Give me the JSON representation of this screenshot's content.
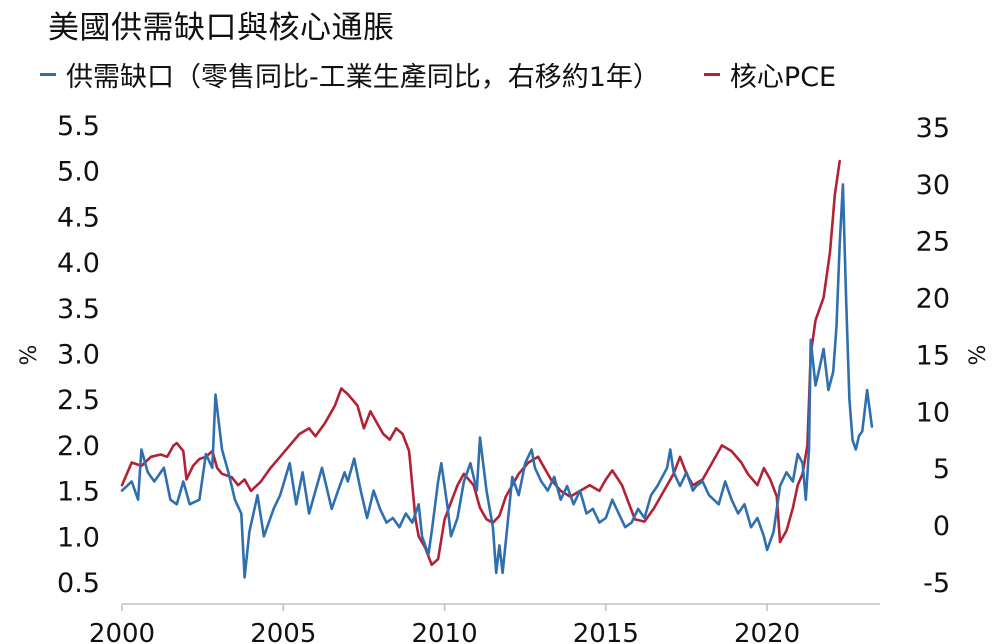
{
  "chart_data": {
    "type": "line",
    "title": "美國供需缺口與核心通脹",
    "y_left": {
      "label": "%",
      "ticks": [
        "5.5",
        "5.0",
        "4.5",
        "4.0",
        "3.5",
        "3.0",
        "2.5",
        "2.0",
        "1.5",
        "1.0",
        "0.5"
      ],
      "range": [
        0.3,
        5.5
      ]
    },
    "y_right": {
      "label": "%",
      "ticks": [
        "35",
        "30",
        "25",
        "20",
        "15",
        "10",
        "5",
        "0",
        "-5"
      ],
      "range": [
        -7,
        35
      ]
    },
    "x": {
      "ticks": [
        "2000",
        "2005",
        "2010",
        "2015",
        "2020"
      ],
      "range": [
        2000,
        2023.5
      ]
    },
    "grid": false,
    "legend_position": "top",
    "series": [
      {
        "name": "供需缺口（零售同比-工業生產同比，右移約1年）",
        "color": "#2f6fb0",
        "axis": "left",
        "points": [
          [
            2000.0,
            1.5
          ],
          [
            2000.3,
            1.6
          ],
          [
            2000.5,
            1.4
          ],
          [
            2000.6,
            1.95
          ],
          [
            2000.8,
            1.7
          ],
          [
            2001.0,
            1.6
          ],
          [
            2001.3,
            1.75
          ],
          [
            2001.5,
            1.4
          ],
          [
            2001.7,
            1.35
          ],
          [
            2001.9,
            1.6
          ],
          [
            2002.1,
            1.35
          ],
          [
            2002.4,
            1.4
          ],
          [
            2002.6,
            1.9
          ],
          [
            2002.8,
            1.75
          ],
          [
            2002.9,
            2.55
          ],
          [
            2003.1,
            1.95
          ],
          [
            2003.3,
            1.7
          ],
          [
            2003.5,
            1.4
          ],
          [
            2003.7,
            1.25
          ],
          [
            2003.8,
            0.55
          ],
          [
            2003.95,
            1.05
          ],
          [
            2004.2,
            1.45
          ],
          [
            2004.4,
            1.0
          ],
          [
            2004.7,
            1.3
          ],
          [
            2004.9,
            1.45
          ],
          [
            2005.2,
            1.8
          ],
          [
            2005.4,
            1.35
          ],
          [
            2005.6,
            1.7
          ],
          [
            2005.8,
            1.25
          ],
          [
            2006.0,
            1.5
          ],
          [
            2006.2,
            1.75
          ],
          [
            2006.5,
            1.3
          ],
          [
            2006.7,
            1.5
          ],
          [
            2006.9,
            1.7
          ],
          [
            2007.0,
            1.6
          ],
          [
            2007.2,
            1.85
          ],
          [
            2007.4,
            1.5
          ],
          [
            2007.6,
            1.2
          ],
          [
            2007.8,
            1.5
          ],
          [
            2008.0,
            1.3
          ],
          [
            2008.2,
            1.15
          ],
          [
            2008.4,
            1.2
          ],
          [
            2008.6,
            1.1
          ],
          [
            2008.8,
            1.25
          ],
          [
            2009.0,
            1.15
          ],
          [
            2009.2,
            1.35
          ],
          [
            2009.3,
            1.0
          ],
          [
            2009.5,
            0.8
          ],
          [
            2009.6,
            1.05
          ],
          [
            2009.8,
            1.6
          ],
          [
            2009.9,
            1.8
          ],
          [
            2010.1,
            1.3
          ],
          [
            2010.2,
            1.0
          ],
          [
            2010.4,
            1.2
          ],
          [
            2010.6,
            1.6
          ],
          [
            2010.8,
            1.8
          ],
          [
            2011.0,
            1.5
          ],
          [
            2011.1,
            2.08
          ],
          [
            2011.3,
            1.5
          ],
          [
            2011.5,
            1.1
          ],
          [
            2011.6,
            0.6
          ],
          [
            2011.7,
            0.9
          ],
          [
            2011.8,
            0.6
          ],
          [
            2012.0,
            1.3
          ],
          [
            2012.1,
            1.65
          ],
          [
            2012.3,
            1.45
          ],
          [
            2012.5,
            1.8
          ],
          [
            2012.7,
            1.95
          ],
          [
            2012.8,
            1.75
          ],
          [
            2013.0,
            1.6
          ],
          [
            2013.2,
            1.5
          ],
          [
            2013.4,
            1.65
          ],
          [
            2013.6,
            1.4
          ],
          [
            2013.8,
            1.55
          ],
          [
            2014.0,
            1.35
          ],
          [
            2014.2,
            1.5
          ],
          [
            2014.4,
            1.25
          ],
          [
            2014.6,
            1.3
          ],
          [
            2014.8,
            1.15
          ],
          [
            2015.0,
            1.2
          ],
          [
            2015.2,
            1.4
          ],
          [
            2015.4,
            1.25
          ],
          [
            2015.6,
            1.1
          ],
          [
            2015.8,
            1.15
          ],
          [
            2016.0,
            1.3
          ],
          [
            2016.2,
            1.2
          ],
          [
            2016.4,
            1.45
          ],
          [
            2016.6,
            1.55
          ],
          [
            2016.9,
            1.75
          ],
          [
            2017.0,
            1.95
          ],
          [
            2017.1,
            1.7
          ],
          [
            2017.3,
            1.55
          ],
          [
            2017.5,
            1.7
          ],
          [
            2017.7,
            1.5
          ],
          [
            2017.8,
            1.55
          ],
          [
            2018.0,
            1.6
          ],
          [
            2018.2,
            1.45
          ],
          [
            2018.5,
            1.35
          ],
          [
            2018.7,
            1.6
          ],
          [
            2018.9,
            1.4
          ],
          [
            2019.1,
            1.25
          ],
          [
            2019.3,
            1.35
          ],
          [
            2019.5,
            1.1
          ],
          [
            2019.7,
            1.2
          ],
          [
            2019.9,
            1.0
          ],
          [
            2020.0,
            0.85
          ],
          [
            2020.2,
            1.05
          ],
          [
            2020.4,
            1.55
          ],
          [
            2020.6,
            1.7
          ],
          [
            2020.8,
            1.6
          ],
          [
            2020.95,
            1.9
          ],
          [
            2021.1,
            1.8
          ],
          [
            2021.2,
            1.4
          ],
          [
            2021.3,
            1.95
          ],
          [
            2021.35,
            3.15
          ],
          [
            2021.5,
            2.65
          ],
          [
            2021.6,
            2.8
          ],
          [
            2021.75,
            3.05
          ],
          [
            2021.9,
            2.6
          ],
          [
            2022.05,
            2.8
          ],
          [
            2022.15,
            3.3
          ],
          [
            2022.25,
            4.2
          ],
          [
            2022.35,
            4.85
          ],
          [
            2022.45,
            3.6
          ],
          [
            2022.55,
            2.5
          ],
          [
            2022.65,
            2.05
          ],
          [
            2022.75,
            1.95
          ],
          [
            2022.85,
            2.1
          ],
          [
            2022.95,
            2.15
          ],
          [
            2023.1,
            2.6
          ],
          [
            2023.25,
            2.2
          ]
        ]
      },
      {
        "name": "核心PCE",
        "color": "#b22234",
        "axis": "right",
        "points": [
          [
            2000.0,
            3.5
          ],
          [
            2000.3,
            5.5
          ],
          [
            2000.6,
            5.2
          ],
          [
            2000.9,
            6.0
          ],
          [
            2001.2,
            6.2
          ],
          [
            2001.4,
            6.0
          ],
          [
            2001.6,
            7.0
          ],
          [
            2001.7,
            7.2
          ],
          [
            2001.9,
            6.5
          ],
          [
            2002.0,
            4.0
          ],
          [
            2002.2,
            5.2
          ],
          [
            2002.4,
            5.8
          ],
          [
            2002.6,
            6.0
          ],
          [
            2002.8,
            6.5
          ],
          [
            2002.95,
            5.0
          ],
          [
            2003.1,
            4.5
          ],
          [
            2003.4,
            4.2
          ],
          [
            2003.6,
            3.5
          ],
          [
            2003.8,
            4.0
          ],
          [
            2004.0,
            3.0
          ],
          [
            2004.3,
            3.8
          ],
          [
            2004.6,
            5.0
          ],
          [
            2004.9,
            6.0
          ],
          [
            2005.2,
            7.0
          ],
          [
            2005.5,
            8.0
          ],
          [
            2005.8,
            8.5
          ],
          [
            2006.0,
            7.8
          ],
          [
            2006.3,
            9.0
          ],
          [
            2006.6,
            10.5
          ],
          [
            2006.8,
            12.0
          ],
          [
            2007.0,
            11.5
          ],
          [
            2007.3,
            10.5
          ],
          [
            2007.5,
            8.5
          ],
          [
            2007.7,
            10.0
          ],
          [
            2007.9,
            9.0
          ],
          [
            2008.1,
            8.0
          ],
          [
            2008.3,
            7.5
          ],
          [
            2008.5,
            8.5
          ],
          [
            2008.7,
            8.0
          ],
          [
            2008.9,
            6.5
          ],
          [
            2009.0,
            3.5
          ],
          [
            2009.1,
            0.5
          ],
          [
            2009.2,
            -1.0
          ],
          [
            2009.4,
            -2.0
          ],
          [
            2009.6,
            -3.5
          ],
          [
            2009.8,
            -3.0
          ],
          [
            2010.0,
            0.5
          ],
          [
            2010.2,
            2.0
          ],
          [
            2010.4,
            3.5
          ],
          [
            2010.6,
            4.5
          ],
          [
            2010.9,
            3.5
          ],
          [
            2011.1,
            1.5
          ],
          [
            2011.3,
            0.5
          ],
          [
            2011.5,
            0.2
          ],
          [
            2011.7,
            0.8
          ],
          [
            2011.9,
            2.5
          ],
          [
            2012.1,
            3.5
          ],
          [
            2012.3,
            4.5
          ],
          [
            2012.6,
            5.5
          ],
          [
            2012.9,
            6.0
          ],
          [
            2013.1,
            5.0
          ],
          [
            2013.3,
            4.0
          ],
          [
            2013.6,
            3.0
          ],
          [
            2013.9,
            2.5
          ],
          [
            2014.2,
            3.0
          ],
          [
            2014.5,
            3.5
          ],
          [
            2014.8,
            3.0
          ],
          [
            2015.0,
            4.0
          ],
          [
            2015.2,
            4.8
          ],
          [
            2015.5,
            3.5
          ],
          [
            2015.7,
            2.0
          ],
          [
            2015.9,
            0.5
          ],
          [
            2016.2,
            0.3
          ],
          [
            2016.5,
            1.5
          ],
          [
            2016.8,
            3.0
          ],
          [
            2017.1,
            4.5
          ],
          [
            2017.3,
            6.0
          ],
          [
            2017.5,
            4.5
          ],
          [
            2017.7,
            3.5
          ],
          [
            2018.0,
            4.0
          ],
          [
            2018.3,
            5.5
          ],
          [
            2018.6,
            7.0
          ],
          [
            2018.9,
            6.5
          ],
          [
            2019.2,
            5.5
          ],
          [
            2019.4,
            4.5
          ],
          [
            2019.7,
            3.5
          ],
          [
            2019.9,
            5.0
          ],
          [
            2020.1,
            4.0
          ],
          [
            2020.3,
            2.5
          ],
          [
            2020.4,
            -1.5
          ],
          [
            2020.6,
            -0.5
          ],
          [
            2020.8,
            1.5
          ],
          [
            2020.95,
            3.5
          ],
          [
            2021.1,
            4.5
          ],
          [
            2021.25,
            7.0
          ],
          [
            2021.35,
            15.0
          ],
          [
            2021.5,
            18.0
          ],
          [
            2021.75,
            20.0
          ],
          [
            2021.95,
            24.0
          ],
          [
            2022.1,
            29.0
          ],
          [
            2022.25,
            32.0
          ]
        ]
      }
    ]
  }
}
